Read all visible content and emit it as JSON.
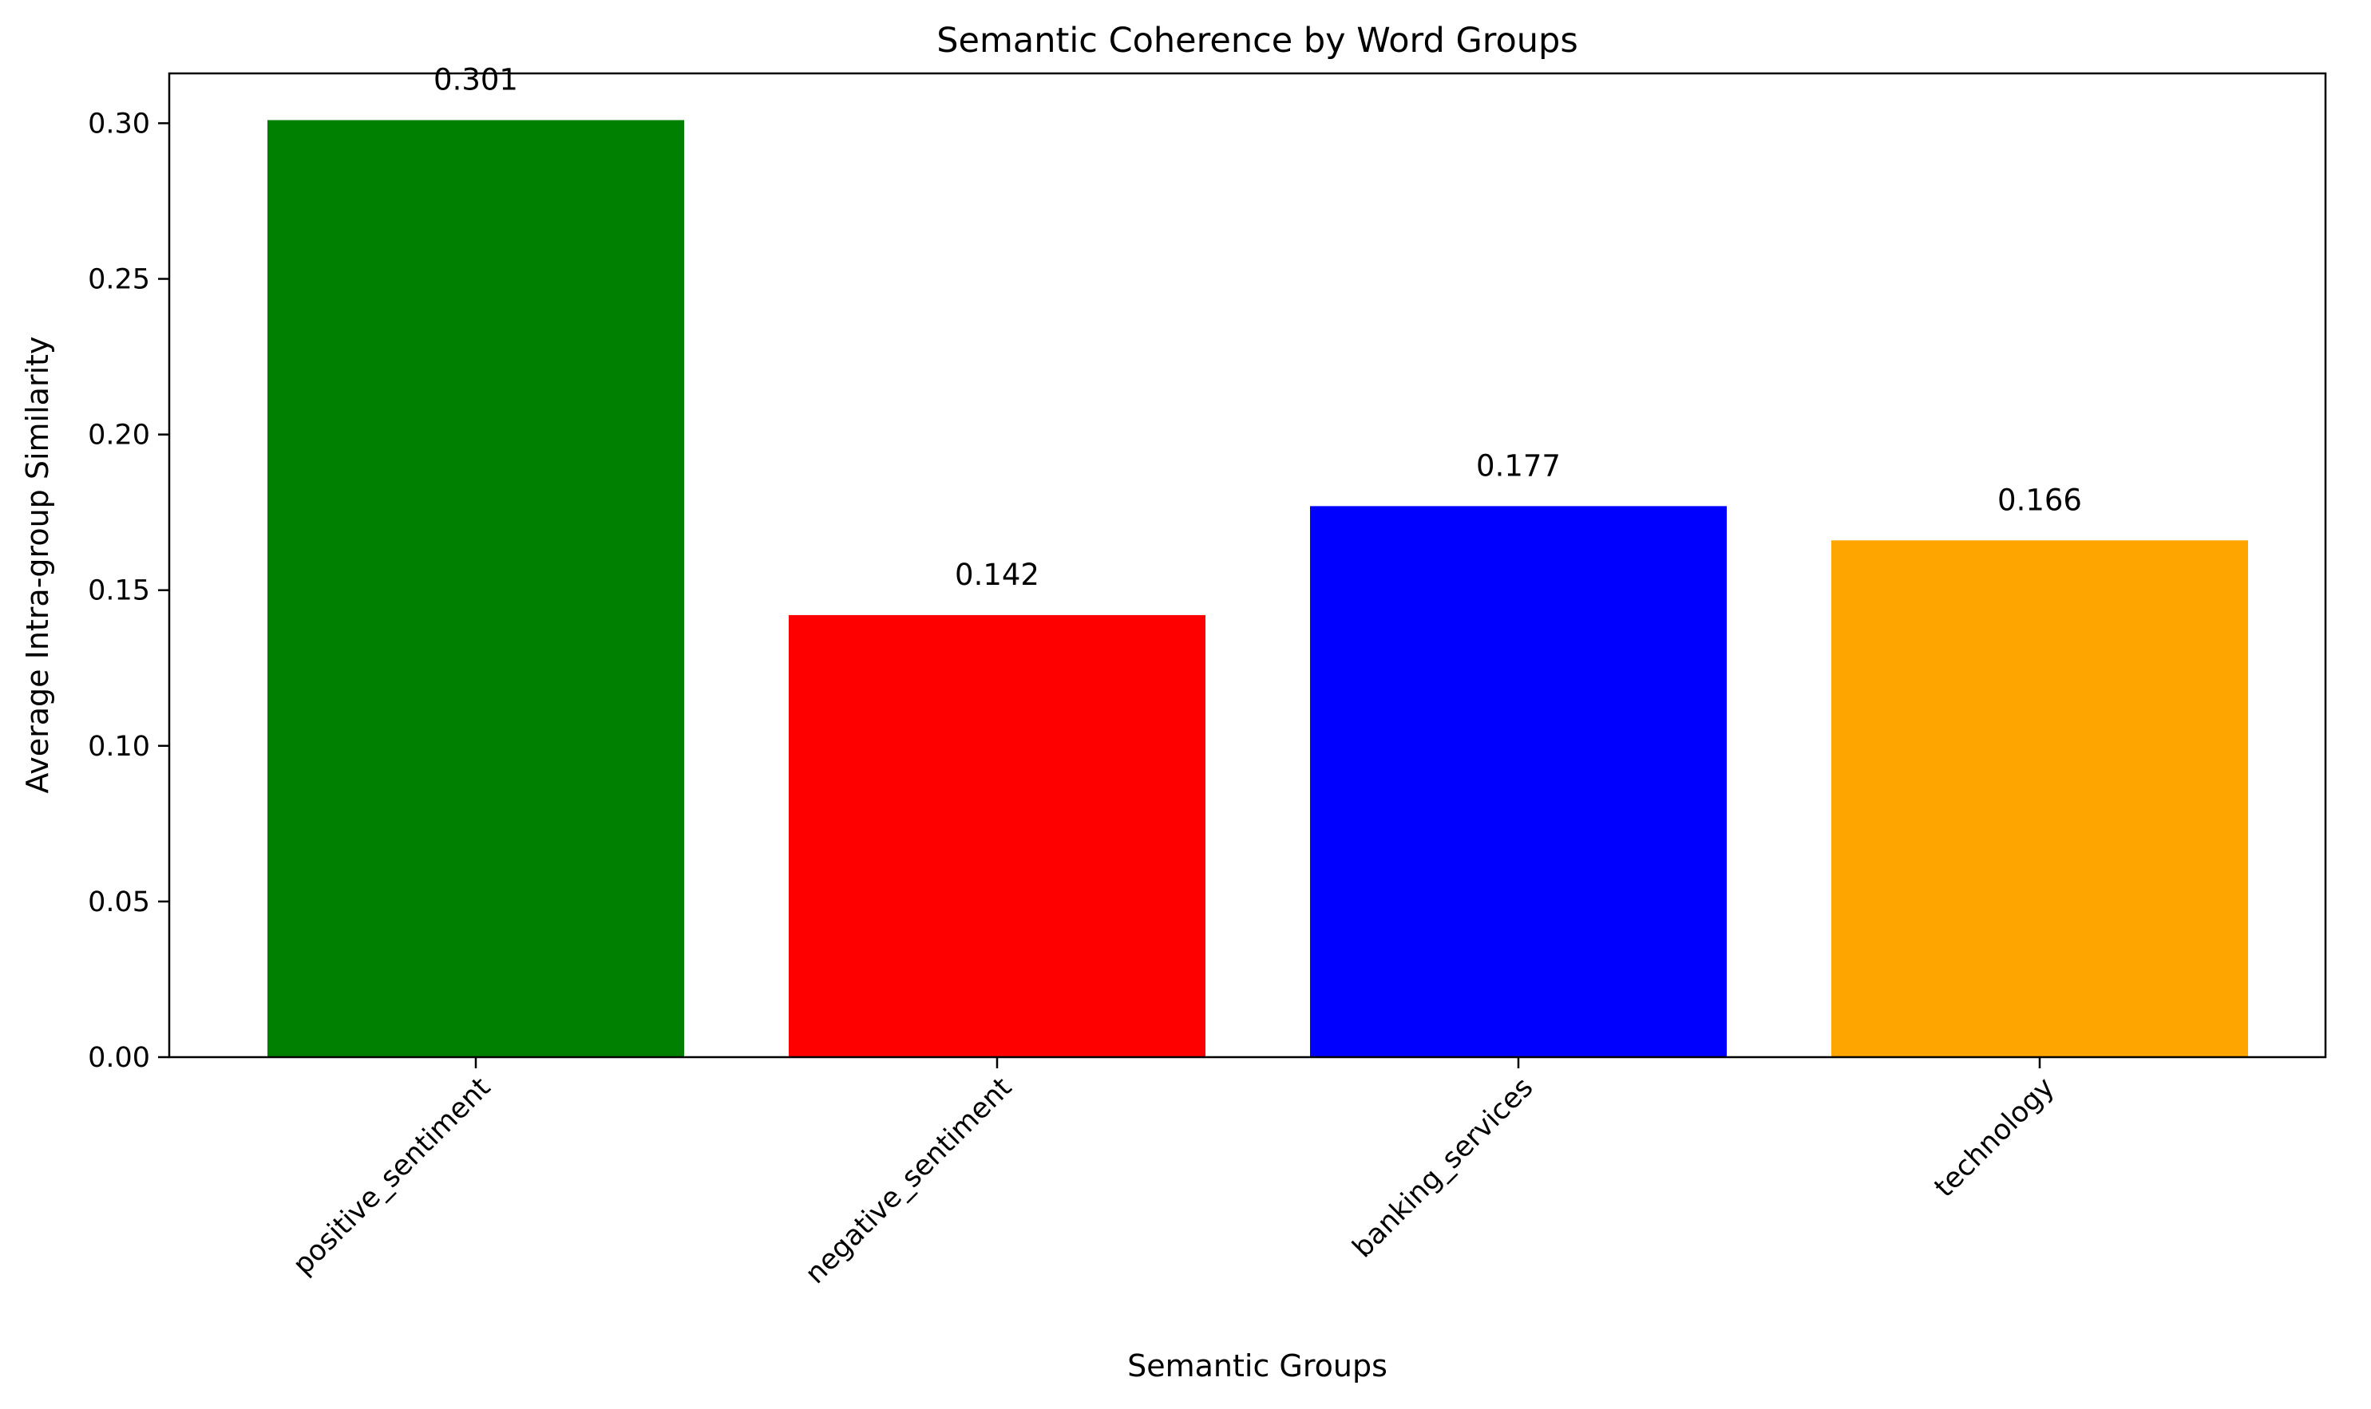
{
  "chart_data": {
    "type": "bar",
    "title": "Semantic Coherence by Word Groups",
    "xlabel": "Semantic Groups",
    "ylabel": "Average Intra-group Similarity",
    "categories": [
      "positive_sentiment",
      "negative_sentiment",
      "banking_services",
      "technology"
    ],
    "values": [
      0.301,
      0.142,
      0.177,
      0.166
    ],
    "value_labels": [
      "0.301",
      "0.142",
      "0.177",
      "0.166"
    ],
    "colors": [
      "#008000",
      "#ff0000",
      "#0000ff",
      "#ffa500"
    ],
    "yticks": [
      0.0,
      0.05,
      0.1,
      0.15,
      0.2,
      0.25,
      0.3
    ],
    "ytick_labels": [
      "0.00",
      "0.05",
      "0.10",
      "0.15",
      "0.20",
      "0.25",
      "0.30"
    ],
    "ylim": [
      0,
      0.316
    ],
    "grid": false,
    "legend": false
  }
}
